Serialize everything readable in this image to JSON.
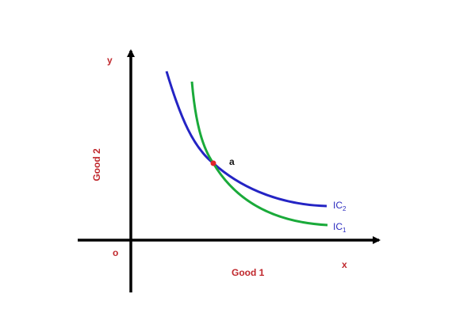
{
  "axes": {
    "x_label": "x",
    "y_label": "y",
    "origin_label": "o",
    "x_title": "Good 1",
    "y_title": "Good 2"
  },
  "point": {
    "label": "a",
    "color": "#e0262a"
  },
  "curves": [
    {
      "name": "IC",
      "subscript": "2",
      "color": "#2424c4"
    },
    {
      "name": "IC",
      "subscript": "1",
      "color": "#1aaa3a"
    }
  ],
  "colors": {
    "axis": "#000000",
    "label_red": "#c0282d",
    "label_curve": "#2b2bbf"
  }
}
